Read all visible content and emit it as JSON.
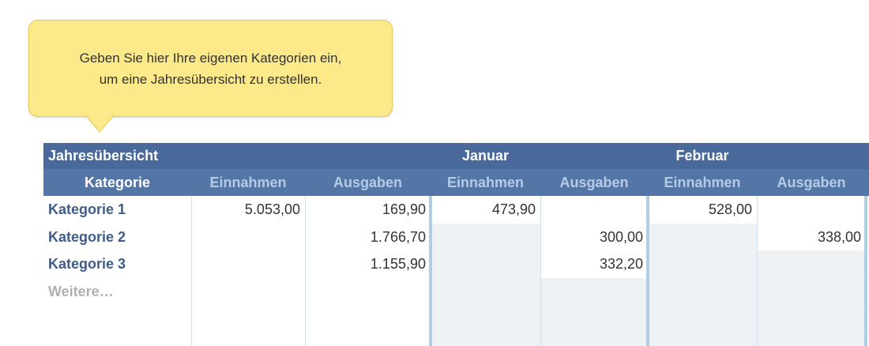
{
  "tooltip": {
    "lines": [
      "Geben Sie hier Ihre eigenen Kategorien ein,",
      "um eine Jahresübersicht zu erstellen."
    ]
  },
  "table": {
    "title": "Jahresübersicht",
    "months": [
      "Januar",
      "Februar"
    ],
    "columns": [
      "Kategorie",
      "Einnahmen",
      "Ausgaben",
      "Einnahmen",
      "Ausgaben",
      "Einnahmen",
      "Ausgaben"
    ],
    "rows": [
      [
        "Kategorie 1",
        "5.053,00",
        "169,90",
        "473,90",
        null,
        "528,00",
        null
      ],
      [
        "Kategorie 2",
        null,
        "1.766,70",
        null,
        "300,00",
        null,
        "338,00"
      ],
      [
        "Kategorie 3",
        null,
        "1.155,90",
        null,
        "332,20",
        null,
        null
      ],
      [
        "Weitere…",
        null,
        null,
        null,
        null,
        null,
        null
      ],
      [
        null,
        null,
        null,
        null,
        null,
        null,
        null
      ],
      [
        null,
        null,
        null,
        null,
        null,
        null,
        null
      ]
    ]
  }
}
